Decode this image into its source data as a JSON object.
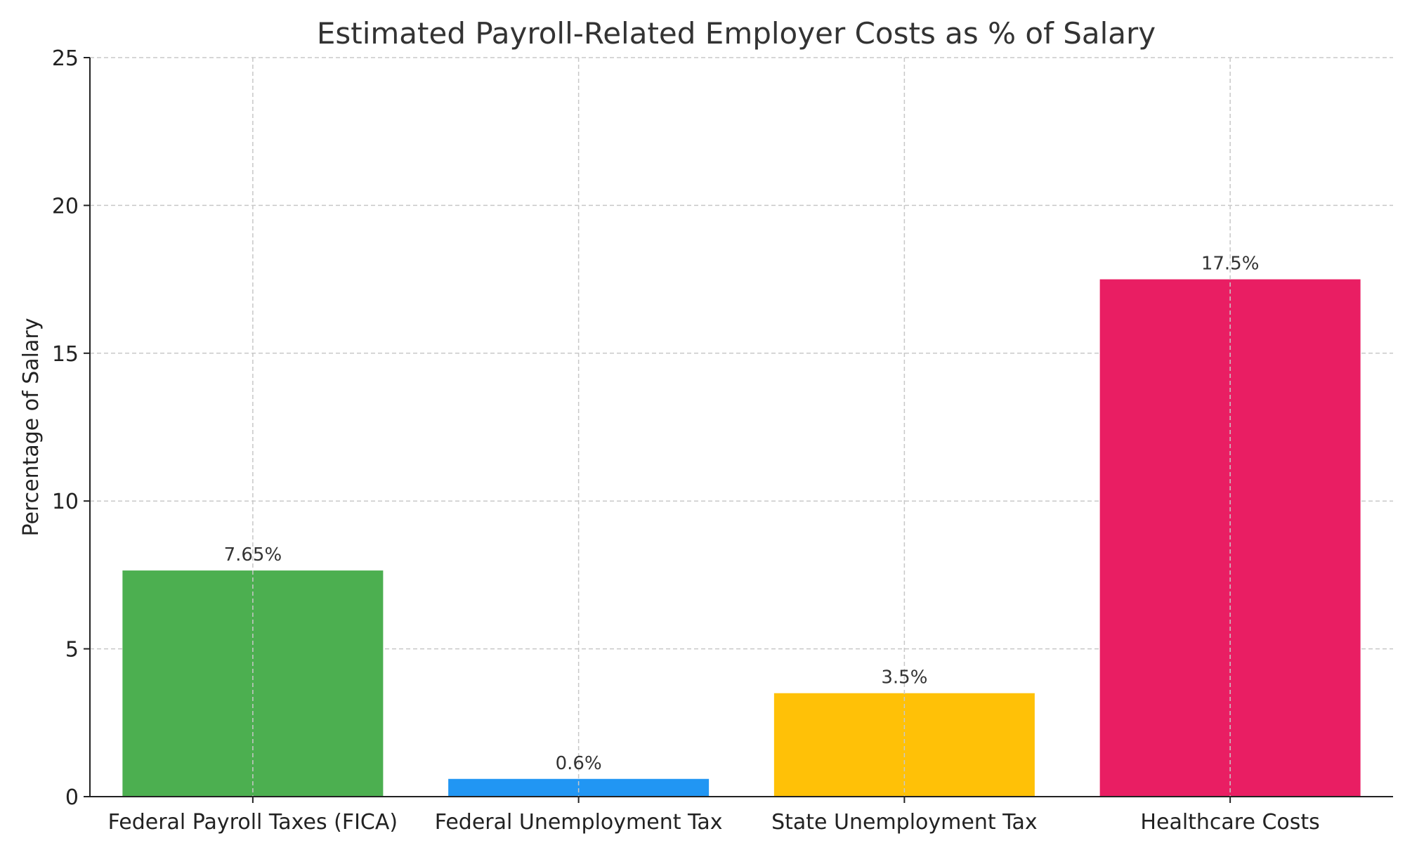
{
  "chart_data": {
    "type": "bar",
    "title": "Estimated Payroll-Related Employer Costs as % of Salary",
    "xlabel": "",
    "ylabel": "Percentage of Salary",
    "categories": [
      "Federal Payroll Taxes (FICA)",
      "Federal Unemployment Tax",
      "State Unemployment Tax",
      "Healthcare Costs"
    ],
    "values": [
      7.65,
      0.6,
      3.5,
      17.5
    ],
    "data_labels": [
      "7.65%",
      "0.6%",
      "3.5%",
      "17.5%"
    ],
    "colors": [
      "#4caf50",
      "#2196f3",
      "#ffc107",
      "#e91e63"
    ],
    "ylim": [
      0,
      25
    ],
    "yticks": [
      0,
      5,
      10,
      15,
      20,
      25
    ],
    "grid": true
  }
}
